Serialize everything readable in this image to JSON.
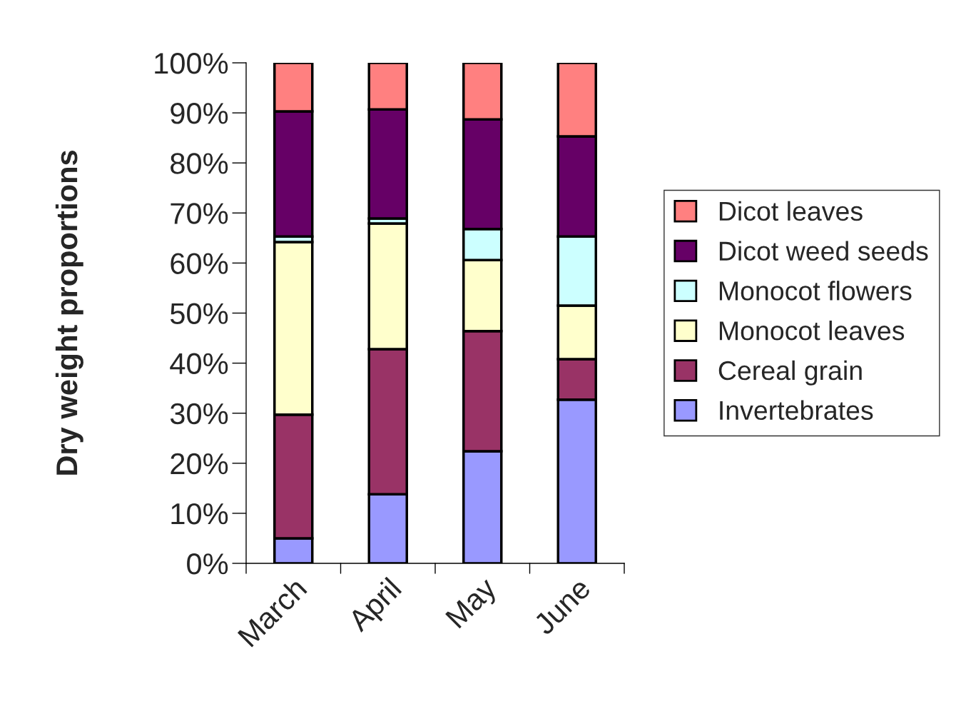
{
  "chart_data": {
    "type": "bar",
    "stacked": true,
    "ylabel": "Dry weight proportions",
    "categories": [
      "March",
      "April",
      "May",
      "June"
    ],
    "series": [
      {
        "name": "Invertebrates",
        "color": "#9999ff",
        "values": [
          5,
          13.8,
          22.4,
          32.7
        ]
      },
      {
        "name": "Cereal grain",
        "color": "#993366",
        "values": [
          24.7,
          29,
          24,
          8.1
        ]
      },
      {
        "name": "Monocot leaves",
        "color": "#ffffcc",
        "values": [
          34.5,
          25.1,
          14.2,
          10.7
        ]
      },
      {
        "name": "Monocot flowers",
        "color": "#ccffff",
        "values": [
          1.1,
          1,
          6.2,
          13.8
        ]
      },
      {
        "name": "Dicot weed seeds",
        "color": "#660066",
        "values": [
          25,
          21.8,
          21.9,
          20
        ]
      },
      {
        "name": "Dicot leaves",
        "color": "#ff8080",
        "values": [
          9.7,
          9.3,
          11.3,
          14.7
        ]
      }
    ],
    "ylim": [
      0,
      100
    ],
    "yticks": [
      {
        "value": 0,
        "label": "0%"
      },
      {
        "value": 10,
        "label": "10%"
      },
      {
        "value": 20,
        "label": "20%"
      },
      {
        "value": 30,
        "label": "30%"
      },
      {
        "value": 40,
        "label": "40%"
      },
      {
        "value": 50,
        "label": "50%"
      },
      {
        "value": 60,
        "label": "60%"
      },
      {
        "value": 70,
        "label": "70%"
      },
      {
        "value": 80,
        "label": "80%"
      },
      {
        "value": 90,
        "label": "90%"
      },
      {
        "value": 100,
        "label": "100%"
      }
    ],
    "grid": false,
    "legend": "right"
  }
}
